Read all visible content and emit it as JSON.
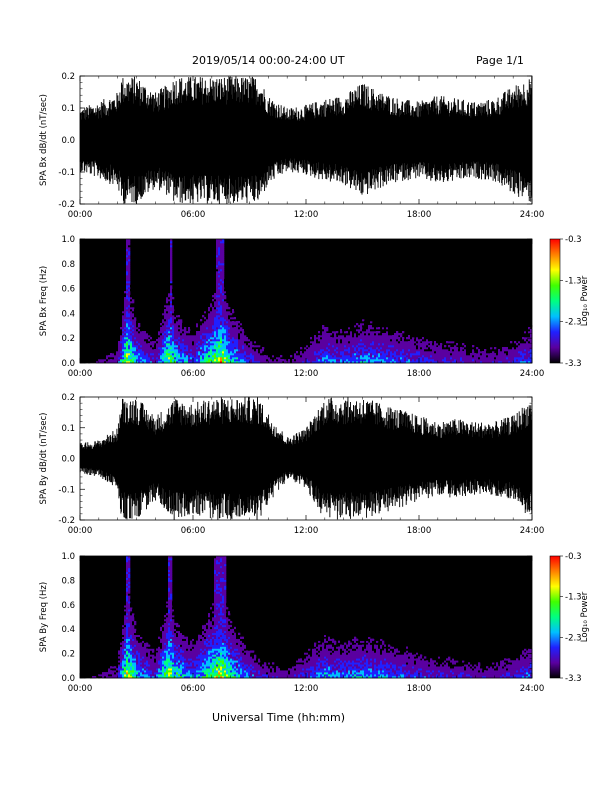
{
  "header": {
    "title": "2019/05/14  00:00-24:00 UT",
    "page": "Page 1/1"
  },
  "x_axis_title": "Universal Time (hh:mm)",
  "colorbar_colors": [
    "#000000",
    "#5a00a0",
    "#2020ff",
    "#00c0ff",
    "#00ff80",
    "#40ff00",
    "#ffff00",
    "#ff8000",
    "#ff0000"
  ],
  "trace_color": "#000000",
  "chart_data": [
    {
      "type": "line",
      "ylabel": "SPA Bx dB/dt (nT/sec)",
      "ylim": [
        -0.2,
        0.2
      ],
      "yticks": [
        "-0.2",
        "-0.1",
        "0.0",
        "0.1",
        "0.2"
      ],
      "xticks": [
        "00:00",
        "06:00",
        "12:00",
        "18:00",
        "24:00"
      ],
      "xlim": [
        0,
        24
      ],
      "envelope_series": {
        "name": "",
        "x": [
          0,
          1,
          2,
          2.2,
          3,
          4,
          4.8,
          5,
          6,
          7,
          8,
          9,
          9.5,
          10,
          11,
          12,
          13,
          14,
          15,
          16,
          17,
          18,
          19,
          20,
          21,
          22,
          23,
          24
        ],
        "amplitude": [
          0.1,
          0.12,
          0.15,
          0.2,
          0.2,
          0.15,
          0.18,
          0.2,
          0.2,
          0.2,
          0.2,
          0.2,
          0.2,
          0.14,
          0.1,
          0.11,
          0.13,
          0.14,
          0.18,
          0.15,
          0.13,
          0.12,
          0.14,
          0.13,
          0.12,
          0.13,
          0.17,
          0.2
        ]
      }
    },
    {
      "type": "heatmap",
      "ylabel": "SPA Bx Freq (Hz)",
      "ylim": [
        0.0,
        1.0
      ],
      "yticks": [
        "0.0",
        "0.2",
        "0.4",
        "0.6",
        "0.8",
        "1.0"
      ],
      "xticks": [
        "00:00",
        "06:00",
        "12:00",
        "18:00",
        "24:00"
      ],
      "xlim": [
        0,
        24
      ],
      "colorbar": {
        "label": "Log₁₀ Power",
        "ticks": [
          "-0.3",
          "-1.3",
          "-2.3",
          "-3.3"
        ],
        "range": [
          -3.3,
          -0.3
        ]
      },
      "activity_hours": [
        0,
        1,
        2,
        2.5,
        3,
        4,
        4.8,
        5,
        6,
        7,
        7.5,
        8,
        9,
        10,
        11,
        12,
        13,
        14,
        15,
        16,
        17,
        18,
        19,
        20,
        21,
        22,
        23,
        24
      ],
      "activity_level": [
        0.1,
        0.15,
        0.25,
        0.9,
        0.5,
        0.3,
        0.85,
        0.6,
        0.4,
        0.7,
        0.9,
        0.6,
        0.35,
        0.2,
        0.15,
        0.3,
        0.45,
        0.4,
        0.5,
        0.45,
        0.4,
        0.35,
        0.3,
        0.3,
        0.25,
        0.25,
        0.3,
        0.45
      ]
    },
    {
      "type": "line",
      "ylabel": "SPA By dB/dt (nT/sec)",
      "ylim": [
        -0.2,
        0.2
      ],
      "yticks": [
        "-0.2",
        "-0.1",
        "0.0",
        "0.1",
        "0.2"
      ],
      "xticks": [
        "00:00",
        "06:00",
        "12:00",
        "18:00",
        "24:00"
      ],
      "xlim": [
        0,
        24
      ],
      "envelope_series": {
        "name": "",
        "x": [
          0,
          1,
          2,
          2.2,
          3,
          4,
          4.8,
          5,
          6,
          7,
          8,
          9,
          9.5,
          10,
          11,
          12,
          13,
          14,
          15,
          16,
          17,
          18,
          19,
          20,
          21,
          22,
          23,
          24
        ],
        "amplitude": [
          0.05,
          0.06,
          0.1,
          0.2,
          0.2,
          0.14,
          0.18,
          0.2,
          0.18,
          0.2,
          0.2,
          0.2,
          0.2,
          0.15,
          0.07,
          0.1,
          0.2,
          0.2,
          0.2,
          0.18,
          0.16,
          0.14,
          0.12,
          0.13,
          0.12,
          0.12,
          0.14,
          0.2
        ]
      }
    },
    {
      "type": "heatmap",
      "ylabel": "SPA By Freq (Hz)",
      "ylim": [
        0.0,
        1.0
      ],
      "yticks": [
        "0.0",
        "0.2",
        "0.4",
        "0.6",
        "0.8",
        "1.0"
      ],
      "xticks": [
        "00:00",
        "06:00",
        "12:00",
        "18:00",
        "24:00"
      ],
      "xlim": [
        0,
        24
      ],
      "colorbar": {
        "label": "Log₁₀ Power",
        "ticks": [
          "-0.3",
          "-1.3",
          "-2.3",
          "-3.3"
        ],
        "range": [
          -3.3,
          -0.3
        ]
      },
      "activity_hours": [
        0,
        1,
        2,
        2.5,
        3,
        4,
        4.8,
        5,
        6,
        7,
        7.5,
        8,
        9,
        10,
        11,
        12,
        13,
        14,
        15,
        16,
        17,
        18,
        19,
        20,
        21,
        22,
        23,
        24
      ],
      "activity_level": [
        0.1,
        0.15,
        0.25,
        0.9,
        0.55,
        0.35,
        0.9,
        0.65,
        0.45,
        0.75,
        0.9,
        0.65,
        0.4,
        0.25,
        0.2,
        0.35,
        0.5,
        0.45,
        0.5,
        0.45,
        0.4,
        0.35,
        0.3,
        0.3,
        0.25,
        0.25,
        0.3,
        0.45
      ]
    }
  ]
}
